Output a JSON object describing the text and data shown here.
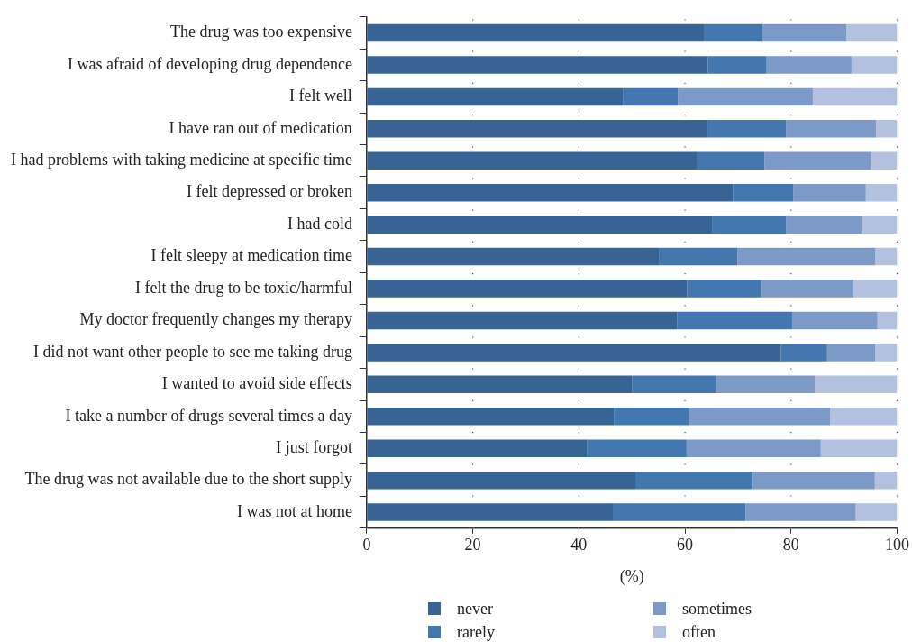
{
  "chart_data": {
    "type": "bar",
    "orientation": "horizontal",
    "stacked": true,
    "xlabel": "(%)",
    "categories": [
      "The drug was too expensive",
      "I was afraid of developing drug dependence",
      "I felt well",
      "I have ran out of medication",
      "I had problems with taking medicine at specific time",
      "I felt depressed or broken",
      "I had cold",
      "I felt sleepy at medication time",
      "I felt the drug to be toxic/harmful",
      "My doctor frequently changes my therapy",
      "I did not want other people to see me taking drug",
      "I wanted to avoid side effects",
      "I take a number of drugs several times a day",
      "I just forgot",
      "The drug was not available due to the short supply",
      "I was not at home"
    ],
    "series": [
      {
        "name": "never",
        "color": "#376495",
        "values": [
          63.7,
          64.3,
          48.3,
          64.1,
          62.2,
          69.1,
          65.1,
          55.2,
          60.4,
          58.5,
          78.1,
          50.0,
          46.6,
          41.6,
          50.8,
          46.4
        ]
      },
      {
        "name": "rarely",
        "color": "#4277b0",
        "values": [
          10.8,
          11.1,
          10.4,
          15.0,
          12.8,
          11.3,
          14.0,
          14.7,
          13.9,
          21.7,
          8.7,
          15.9,
          14.2,
          18.7,
          22.0,
          25.0
        ]
      },
      {
        "name": "sometimes",
        "color": "#7b9ac8",
        "values": [
          15.9,
          16.0,
          25.4,
          16.9,
          20.0,
          13.7,
          14.2,
          26.0,
          17.5,
          16.1,
          9.1,
          18.6,
          26.6,
          25.3,
          23.0,
          20.8
        ]
      },
      {
        "name": "often",
        "color": "#b2c1df",
        "values": [
          9.6,
          8.6,
          15.9,
          4.0,
          5.0,
          5.9,
          6.7,
          4.1,
          8.2,
          3.7,
          4.1,
          15.5,
          12.6,
          14.4,
          4.2,
          7.8
        ]
      }
    ],
    "xlim": [
      0,
      100
    ],
    "xticks": [
      0,
      20,
      40,
      60,
      80,
      100
    ],
    "grid": "x",
    "legend": "bottom"
  }
}
